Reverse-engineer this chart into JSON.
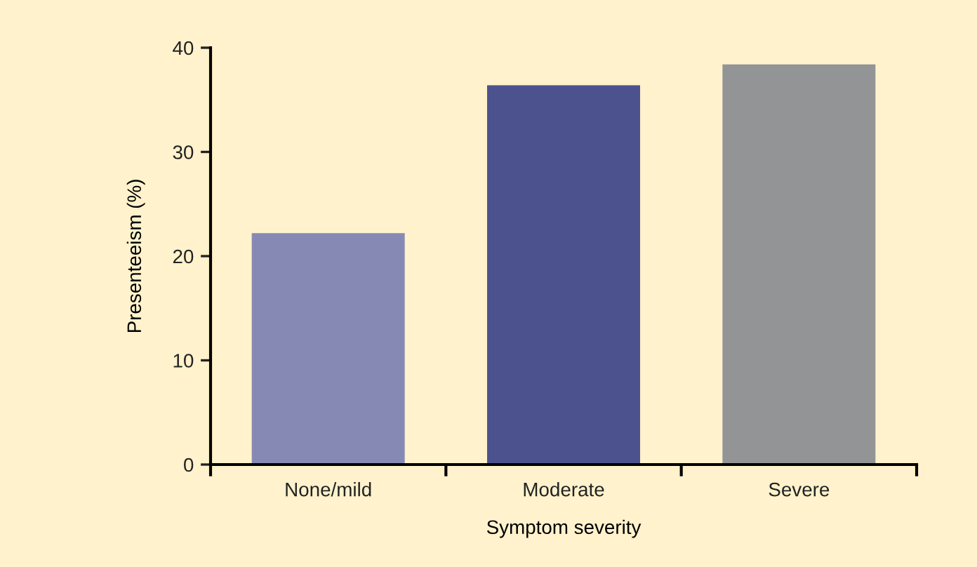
{
  "chart_data": {
    "type": "bar",
    "xlabel": "Symptom severity",
    "ylabel": "Presenteeism (%)",
    "categories": [
      "None/mild",
      "Moderate",
      "Severe"
    ],
    "values": [
      22.2,
      36.4,
      38.4
    ],
    "colors": [
      "#8789b5",
      "#4b528e",
      "#939496"
    ],
    "ylim": [
      0,
      40
    ],
    "yticks": [
      0,
      10,
      20,
      30,
      40
    ],
    "grid": false,
    "legend": false
  }
}
